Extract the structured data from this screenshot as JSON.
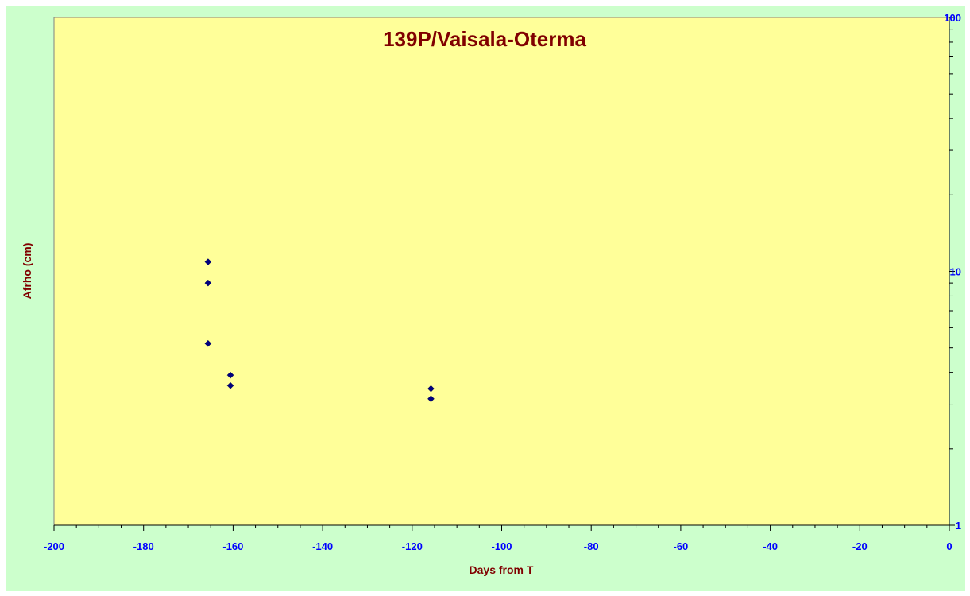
{
  "chart_data": {
    "type": "scatter",
    "title": "139P/Vaisala-Oterma",
    "xlabel": "Days from T",
    "ylabel": "Afrho (cm)",
    "xlim": [
      -200,
      0
    ],
    "ylim": [
      1,
      100
    ],
    "y_scale": "log",
    "x_ticks": [
      -200,
      -180,
      -160,
      -140,
      -120,
      -100,
      -80,
      -60,
      -40,
      -20,
      0
    ],
    "y_ticks": [
      1,
      10,
      100
    ],
    "y_axis_side": "right",
    "grid": false,
    "legend": "none",
    "series": [
      {
        "marker": "diamond",
        "color": "#000080",
        "points": [
          {
            "x": -165.6,
            "y": 10.9
          },
          {
            "x": -165.6,
            "y": 9.0
          },
          {
            "x": -165.6,
            "y": 5.2
          },
          {
            "x": -160.6,
            "y": 3.9
          },
          {
            "x": -160.6,
            "y": 3.55
          },
          {
            "x": -115.8,
            "y": 3.45
          },
          {
            "x": -115.8,
            "y": 3.15
          }
        ]
      }
    ],
    "colors": {
      "frame_background": "#ccffcc",
      "plot_background": "#ffff99",
      "tick_labels": "#0000ff",
      "titles": "#800000",
      "marker": "#000080"
    }
  }
}
